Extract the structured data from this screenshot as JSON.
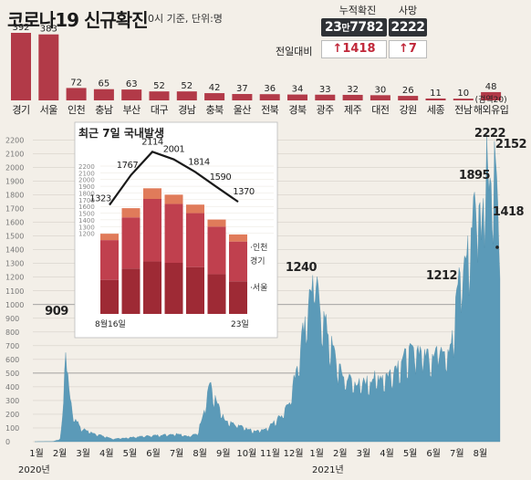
{
  "header": {
    "title": "코로나19 신규확진",
    "subtitle": "0시 기준, 단위:명"
  },
  "summary": {
    "cumulative_label": "누적확진",
    "cumulative_value_a": "23",
    "cumulative_value_unit": "만",
    "cumulative_value_b": "7782",
    "deaths_label": "사망",
    "deaths_value": "2222",
    "diff_label": "전일대비",
    "diff_cases": "↑1418",
    "diff_deaths": "↑7"
  },
  "colors": {
    "bar_red": "#b23a48",
    "area_blue": "#5b9ab8",
    "dark_box": "#2f3236",
    "up_red": "#c0283a",
    "inset_top": "#e07b5a",
    "inset_mid": "#c0404e",
    "inset_bottom": "#9e2a35"
  },
  "chart_data": [
    {
      "type": "bar",
      "title": "",
      "categories": [
        "경기",
        "서울",
        "인천",
        "충남",
        "부산",
        "대구",
        "경남",
        "충북",
        "울산",
        "전북",
        "경북",
        "광주",
        "제주",
        "대전",
        "강원",
        "세종",
        "전남",
        "해외유입"
      ],
      "values": [
        392,
        383,
        72,
        65,
        63,
        52,
        52,
        42,
        37,
        36,
        34,
        33,
        32,
        30,
        26,
        11,
        10,
        48
      ],
      "annotations": [
        {
          "category": "해외유입",
          "text": "(검역20)"
        }
      ]
    },
    {
      "type": "area",
      "title": "",
      "ylim": [
        0,
        2250
      ],
      "yticks": [
        0,
        100,
        200,
        300,
        400,
        500,
        600,
        700,
        800,
        900,
        1000,
        1100,
        1200,
        1300,
        1400,
        1500,
        1600,
        1700,
        1800,
        1900,
        2000,
        2100,
        2200
      ],
      "xticks": [
        "1월",
        "2월",
        "3월",
        "4월",
        "5월",
        "6월",
        "7월",
        "8월",
        "9월",
        "10월",
        "11월",
        "12월",
        "1월",
        "2월",
        "3월",
        "4월",
        "5월",
        "6월",
        "7월",
        "8월"
      ],
      "year_labels": [
        "2020년",
        "2021년"
      ],
      "grid": true,
      "annotations": [
        {
          "text": "909",
          "value": 909
        },
        {
          "text": "1240",
          "value": 1240
        },
        {
          "text": "1212",
          "value": 1212
        },
        {
          "text": "1895",
          "value": 1895
        },
        {
          "text": "2222",
          "value": 2222
        },
        {
          "text": "2152",
          "value": 2152
        },
        {
          "text": "1418",
          "value": 1418
        }
      ]
    },
    {
      "type": "bar",
      "title": "최근 7일 국내발생",
      "categories": [
        "8월16일",
        "",
        "",
        "",
        "",
        "",
        "23일"
      ],
      "line_values": [
        1323,
        1767,
        2114,
        2001,
        1814,
        1590,
        1370
      ],
      "series": [
        {
          "name": "서울",
          "values": [
            480,
            640,
            740,
            720,
            660,
            560,
            460
          ]
        },
        {
          "name": "경기",
          "values": [
            560,
            720,
            880,
            830,
            760,
            670,
            560
          ]
        },
        {
          "name": "인천",
          "values": [
            90,
            130,
            150,
            130,
            120,
            100,
            100
          ]
        }
      ]
    }
  ]
}
